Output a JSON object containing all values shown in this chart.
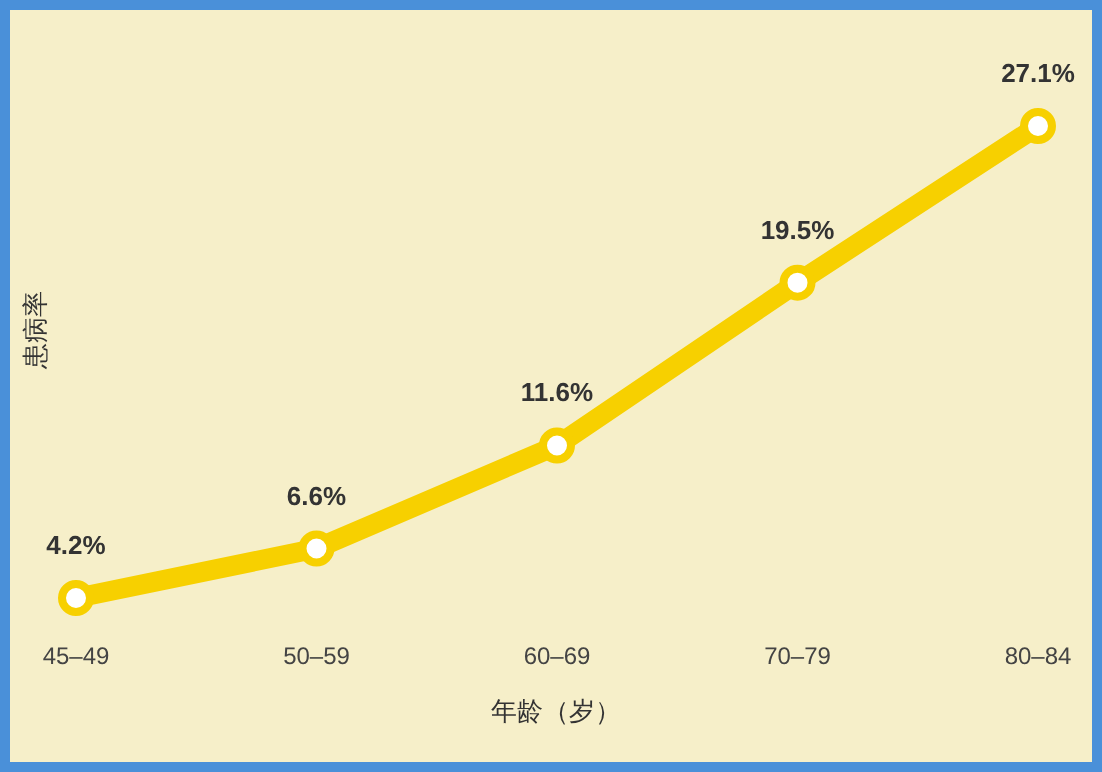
{
  "chart_data": {
    "type": "line",
    "xlabel": "年龄（岁）",
    "ylabel": "患病率",
    "categories": [
      "45–49",
      "50–59",
      "60–69",
      "70–79",
      "80–84"
    ],
    "values": [
      4.2,
      6.6,
      11.6,
      19.5,
      27.1
    ],
    "value_labels": [
      "4.2%",
      "6.6%",
      "11.6%",
      "19.5%",
      "27.1%"
    ],
    "color": "#f7d000",
    "marker": "circle",
    "line_style": "solid"
  }
}
